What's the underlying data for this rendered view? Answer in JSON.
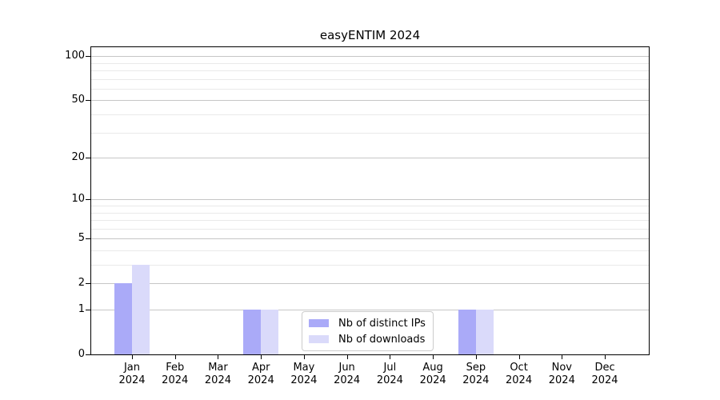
{
  "chart_data": {
    "type": "bar",
    "title": "easyENTIM 2024",
    "categories": [
      "Jan 2024",
      "Feb 2024",
      "Mar 2024",
      "Apr 2024",
      "May 2024",
      "Jun 2024",
      "Jul 2024",
      "Aug 2024",
      "Sep 2024",
      "Oct 2024",
      "Nov 2024",
      "Dec 2024"
    ],
    "series": [
      {
        "name": "Nb of distinct IPs",
        "color": "#aaaaf8",
        "values": [
          2,
          0,
          0,
          1,
          0,
          0,
          0,
          0,
          1,
          0,
          0,
          0
        ]
      },
      {
        "name": "Nb of downloads",
        "color": "#dadafa",
        "values": [
          3,
          0,
          0,
          1,
          0,
          0,
          0,
          0,
          1,
          0,
          0,
          0
        ]
      }
    ],
    "xlabel": "",
    "ylabel": "",
    "y_ticks": [
      0,
      1,
      2,
      5,
      10,
      20,
      50,
      100
    ],
    "y_minor_gridlines": [
      3,
      4,
      6,
      7,
      8,
      9,
      30,
      40,
      60,
      70,
      80,
      90
    ],
    "y_scale": "log10(1+y)",
    "ylim": [
      0,
      115
    ],
    "grid": true,
    "legend_position": "lower center, inside axes"
  },
  "colors": {
    "bar_distinct_ips": "#aaaaf8",
    "bar_downloads": "#dadafa",
    "grid_major": "#c6c6c6",
    "grid_minor": "#e9e9e9",
    "axis_frame": "#000000",
    "tick_text": "#000000",
    "legend_border": "#cccccc",
    "background": "#ffffff"
  }
}
